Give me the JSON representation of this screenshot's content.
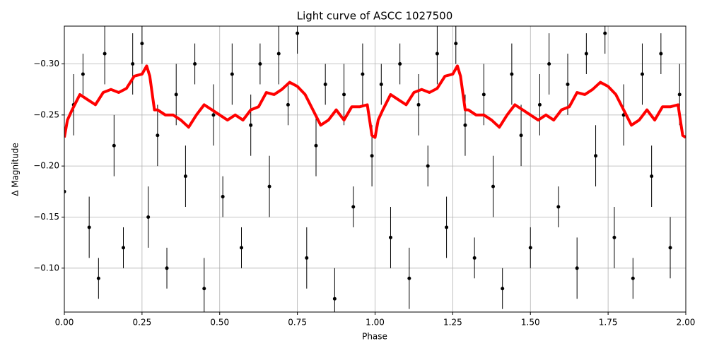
{
  "chart_data": {
    "type": "scatter",
    "title": "Light curve of ASCC 1027500",
    "x_label": "Phase",
    "y_label": "Δ Magnitude",
    "xlim": [
      0,
      2
    ],
    "ylim": [
      -0.057,
      -0.337
    ],
    "grid": true,
    "xticks": [
      {
        "value": 0,
        "label": "0.00"
      },
      {
        "value": 0.25,
        "label": "0.25"
      },
      {
        "value": 0.5,
        "label": "0.50"
      },
      {
        "value": 0.75,
        "label": "0.75"
      },
      {
        "value": 1,
        "label": "1.00"
      },
      {
        "value": 1.25,
        "label": "1.25"
      },
      {
        "value": 1.5,
        "label": "1.50"
      },
      {
        "value": 1.75,
        "label": "1.75"
      },
      {
        "value": 2,
        "label": "2.00"
      }
    ],
    "yticks": [
      {
        "value": -0.1,
        "label": "−0.10"
      },
      {
        "value": -0.15,
        "label": "−0.15"
      },
      {
        "value": -0.2,
        "label": "−0.20"
      },
      {
        "value": -0.25,
        "label": "−0.25"
      },
      {
        "value": -0.3,
        "label": "−0.30"
      }
    ],
    "series": [
      {
        "type": "errorbar",
        "color": "#000000",
        "x": [
          0.0,
          0.03,
          0.06,
          0.08,
          0.11,
          0.13,
          0.16,
          0.19,
          0.22,
          0.25,
          0.27,
          0.3,
          0.33,
          0.36,
          0.39,
          0.42,
          0.45,
          0.48,
          0.51,
          0.54,
          0.57,
          0.6,
          0.63,
          0.66,
          0.69,
          0.72,
          0.75,
          0.78,
          0.81,
          0.84,
          0.87,
          0.9,
          0.93,
          0.96,
          0.99,
          1.02,
          1.05,
          1.08,
          1.11,
          1.14,
          1.17,
          1.2,
          1.23,
          1.26,
          1.29,
          1.32,
          1.35,
          1.38,
          1.41,
          1.44,
          1.47,
          1.5,
          1.53,
          1.56,
          1.59,
          1.62,
          1.65,
          1.68,
          1.71,
          1.74,
          1.77,
          1.8,
          1.83,
          1.86,
          1.89,
          1.92,
          1.95,
          1.98
        ],
        "values": [
          -0.175,
          -0.26,
          -0.29,
          -0.14,
          -0.09,
          -0.31,
          -0.22,
          -0.12,
          -0.3,
          -0.32,
          -0.15,
          -0.23,
          -0.1,
          -0.27,
          -0.19,
          -0.3,
          -0.08,
          -0.25,
          -0.17,
          -0.29,
          -0.12,
          -0.24,
          -0.3,
          -0.18,
          -0.31,
          -0.26,
          -0.33,
          -0.11,
          -0.22,
          -0.28,
          -0.07,
          -0.27,
          -0.16,
          -0.29,
          -0.21,
          -0.28,
          -0.13,
          -0.3,
          -0.09,
          -0.26,
          -0.2,
          -0.31,
          -0.14,
          -0.32,
          -0.24,
          -0.11,
          -0.27,
          -0.18,
          -0.08,
          -0.29,
          -0.23,
          -0.12,
          -0.26,
          -0.3,
          -0.16,
          -0.28,
          -0.1,
          -0.31,
          -0.21,
          -0.33,
          -0.13,
          -0.25,
          -0.09,
          -0.29,
          -0.19,
          -0.31,
          -0.12,
          -0.27
        ],
        "errors": [
          0.02,
          0.03,
          0.02,
          0.03,
          0.02,
          0.03,
          0.03,
          0.02,
          0.03,
          0.02,
          0.03,
          0.03,
          0.02,
          0.03,
          0.03,
          0.02,
          0.03,
          0.03,
          0.02,
          0.03,
          0.02,
          0.03,
          0.02,
          0.03,
          0.03,
          0.02,
          0.02,
          0.03,
          0.03,
          0.02,
          0.03,
          0.03,
          0.02,
          0.03,
          0.03,
          0.02,
          0.03,
          0.02,
          0.03,
          0.03,
          0.02,
          0.03,
          0.03,
          0.02,
          0.03,
          0.02,
          0.03,
          0.03,
          0.02,
          0.03,
          0.03,
          0.02,
          0.03,
          0.03,
          0.02,
          0.03,
          0.03,
          0.02,
          0.03,
          0.02,
          0.03,
          0.03,
          0.02,
          0.03,
          0.03,
          0.02,
          0.03,
          0.03
        ]
      },
      {
        "type": "line",
        "color": "#ff0000",
        "x": [
          0,
          0.01,
          0.025,
          0.05,
          0.075,
          0.1,
          0.125,
          0.15,
          0.175,
          0.2,
          0.225,
          0.25,
          0.265,
          0.275,
          0.29,
          0.3,
          0.325,
          0.35,
          0.375,
          0.4,
          0.425,
          0.45,
          0.475,
          0.5,
          0.525,
          0.55,
          0.575,
          0.6,
          0.625,
          0.65,
          0.675,
          0.7,
          0.725,
          0.75,
          0.775,
          0.8,
          0.825,
          0.85,
          0.875,
          0.9,
          0.925,
          0.95,
          0.975,
          0.99,
          1.0,
          1.01,
          1.025,
          1.05,
          1.075,
          1.1,
          1.125,
          1.15,
          1.175,
          1.2,
          1.225,
          1.25,
          1.265,
          1.275,
          1.29,
          1.3,
          1.325,
          1.35,
          1.375,
          1.4,
          1.425,
          1.45,
          1.475,
          1.5,
          1.525,
          1.55,
          1.575,
          1.6,
          1.625,
          1.65,
          1.675,
          1.7,
          1.725,
          1.75,
          1.775,
          1.8,
          1.825,
          1.85,
          1.875,
          1.9,
          1.925,
          1.95,
          1.975,
          1.99,
          2.0
        ],
        "values": [
          -0.228,
          -0.245,
          -0.255,
          -0.27,
          -0.265,
          -0.26,
          -0.272,
          -0.275,
          -0.272,
          -0.276,
          -0.288,
          -0.29,
          -0.298,
          -0.288,
          -0.255,
          -0.255,
          -0.25,
          -0.25,
          -0.245,
          -0.238,
          -0.25,
          -0.26,
          -0.255,
          -0.25,
          -0.245,
          -0.25,
          -0.245,
          -0.255,
          -0.258,
          -0.272,
          -0.27,
          -0.275,
          -0.282,
          -0.278,
          -0.27,
          -0.255,
          -0.24,
          -0.245,
          -0.255,
          -0.245,
          -0.258,
          -0.258,
          -0.26,
          -0.23,
          -0.228,
          -0.245,
          -0.255,
          -0.27,
          -0.265,
          -0.26,
          -0.272,
          -0.275,
          -0.272,
          -0.276,
          -0.288,
          -0.29,
          -0.298,
          -0.288,
          -0.255,
          -0.255,
          -0.25,
          -0.25,
          -0.245,
          -0.238,
          -0.25,
          -0.26,
          -0.255,
          -0.25,
          -0.245,
          -0.25,
          -0.245,
          -0.255,
          -0.258,
          -0.272,
          -0.27,
          -0.275,
          -0.282,
          -0.278,
          -0.27,
          -0.255,
          -0.24,
          -0.245,
          -0.255,
          -0.245,
          -0.258,
          -0.258,
          -0.26,
          -0.23,
          -0.228
        ]
      }
    ]
  }
}
